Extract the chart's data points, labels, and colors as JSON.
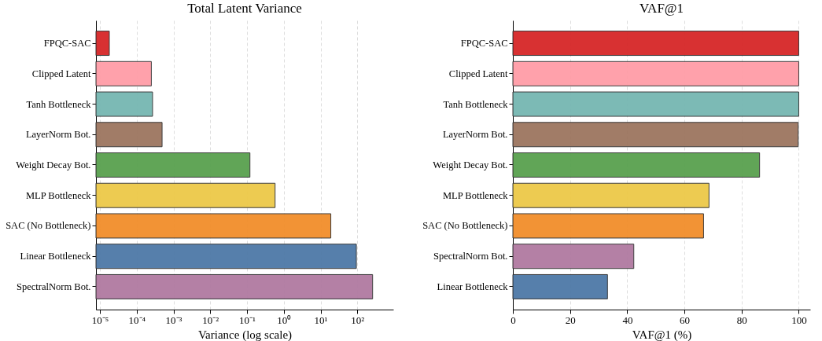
{
  "chart_data": [
    {
      "type": "bar",
      "orientation": "horizontal",
      "title": "Total Latent Variance",
      "xlabel": "Variance (log scale)",
      "log": "x",
      "grid": "x",
      "categories": [
        "FPQC-SAC",
        "Clipped Latent",
        "Tanh Bottleneck",
        "LayerNorm Bot.",
        "Weight Decay Bot.",
        "MLP Bottleneck",
        "SAC (No Bottleneck)",
        "Linear Bottleneck",
        "SpectralNorm Bot."
      ],
      "values": [
        1.8e-05,
        0.00025,
        0.00027,
        0.00049,
        0.12,
        0.58,
        19,
        94,
        260
      ],
      "colors": [
        "#d62728",
        "#ff9da7",
        "#76b7b2",
        "#9c755f",
        "#59a14f",
        "#edc948",
        "#f28e2b",
        "#4e79a7",
        "#b07aa1"
      ],
      "xlim": [
        7.8e-06,
        950
      ],
      "xticks": [
        {
          "value": 1e-05,
          "label": "10⁻⁵"
        },
        {
          "value": 0.0001,
          "label": "10⁻⁴"
        },
        {
          "value": 0.001,
          "label": "10⁻³"
        },
        {
          "value": 0.01,
          "label": "10⁻²"
        },
        {
          "value": 0.1,
          "label": "10⁻¹"
        },
        {
          "value": 1,
          "label": "10⁰"
        },
        {
          "value": 10,
          "label": "10¹"
        },
        {
          "value": 100,
          "label": "10²"
        }
      ]
    },
    {
      "type": "bar",
      "orientation": "horizontal",
      "title": "VAF@1",
      "xlabel": "VAF@1 (%)",
      "grid": "x",
      "categories": [
        "FPQC-SAC",
        "Clipped Latent",
        "Tanh Bottleneck",
        "LayerNorm Bot.",
        "Weight Decay Bot.",
        "MLP Bottleneck",
        "SAC (No Bottleneck)",
        "SpectralNorm Bot.",
        "Linear Bottleneck"
      ],
      "values": [
        100,
        100,
        100,
        99.8,
        86.3,
        68.6,
        66.7,
        42.3,
        33.1
      ],
      "colors": [
        "#d62728",
        "#ff9da7",
        "#76b7b2",
        "#9c755f",
        "#59a14f",
        "#edc948",
        "#f28e2b",
        "#b07aa1",
        "#4e79a7"
      ],
      "xlim": [
        0,
        104
      ],
      "xticks": [
        0,
        20,
        40,
        60,
        80,
        100
      ]
    }
  ]
}
